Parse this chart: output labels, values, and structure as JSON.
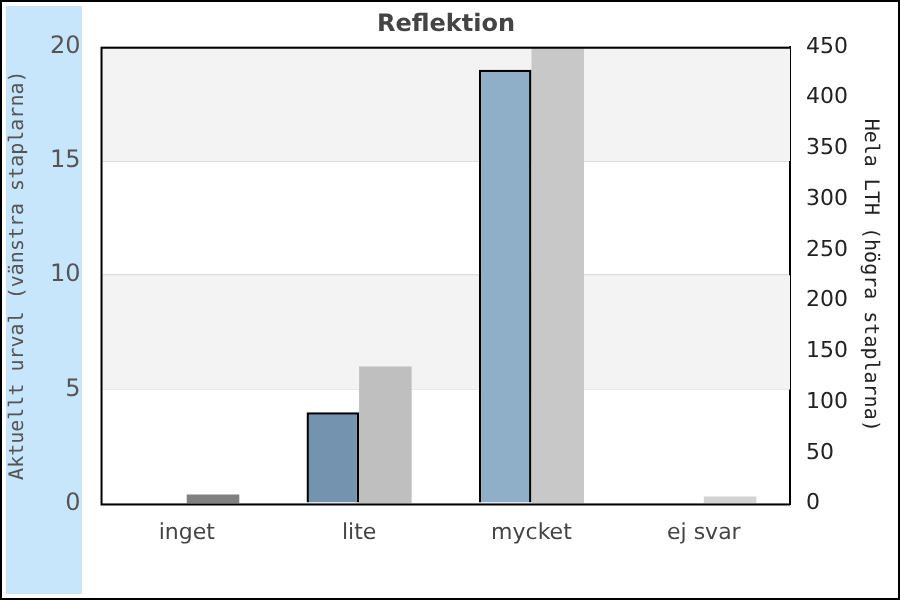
{
  "chart_data": {
    "type": "bar",
    "title": "Reflektion",
    "ylabel": "Aktuellt urval (vänstra staplarna)",
    "y2label": "Hela LTH (högra staplarna)",
    "categories": [
      "inget",
      "lite",
      "mycket",
      "ej svar"
    ],
    "series": [
      {
        "values": [
          0,
          4,
          19,
          0
        ],
        "colors": [
          "#8fafc9",
          "#7393ae",
          "#8fafc9",
          "#8fafc9"
        ]
      },
      {
        "values": [
          9,
          135,
          450,
          7
        ],
        "axis": "y2",
        "colors": [
          "#808080",
          "#bfbfbf",
          "#c8c8c8",
          "#d3d3d3"
        ]
      }
    ],
    "ylim": [
      0,
      20
    ],
    "yticks": [
      0,
      5,
      10,
      15,
      20
    ],
    "y2lim": [
      0,
      450
    ],
    "y2ticks": [
      0,
      50,
      100,
      150,
      200,
      250,
      300,
      350,
      400,
      450
    ],
    "grid": "y",
    "legend": false
  }
}
